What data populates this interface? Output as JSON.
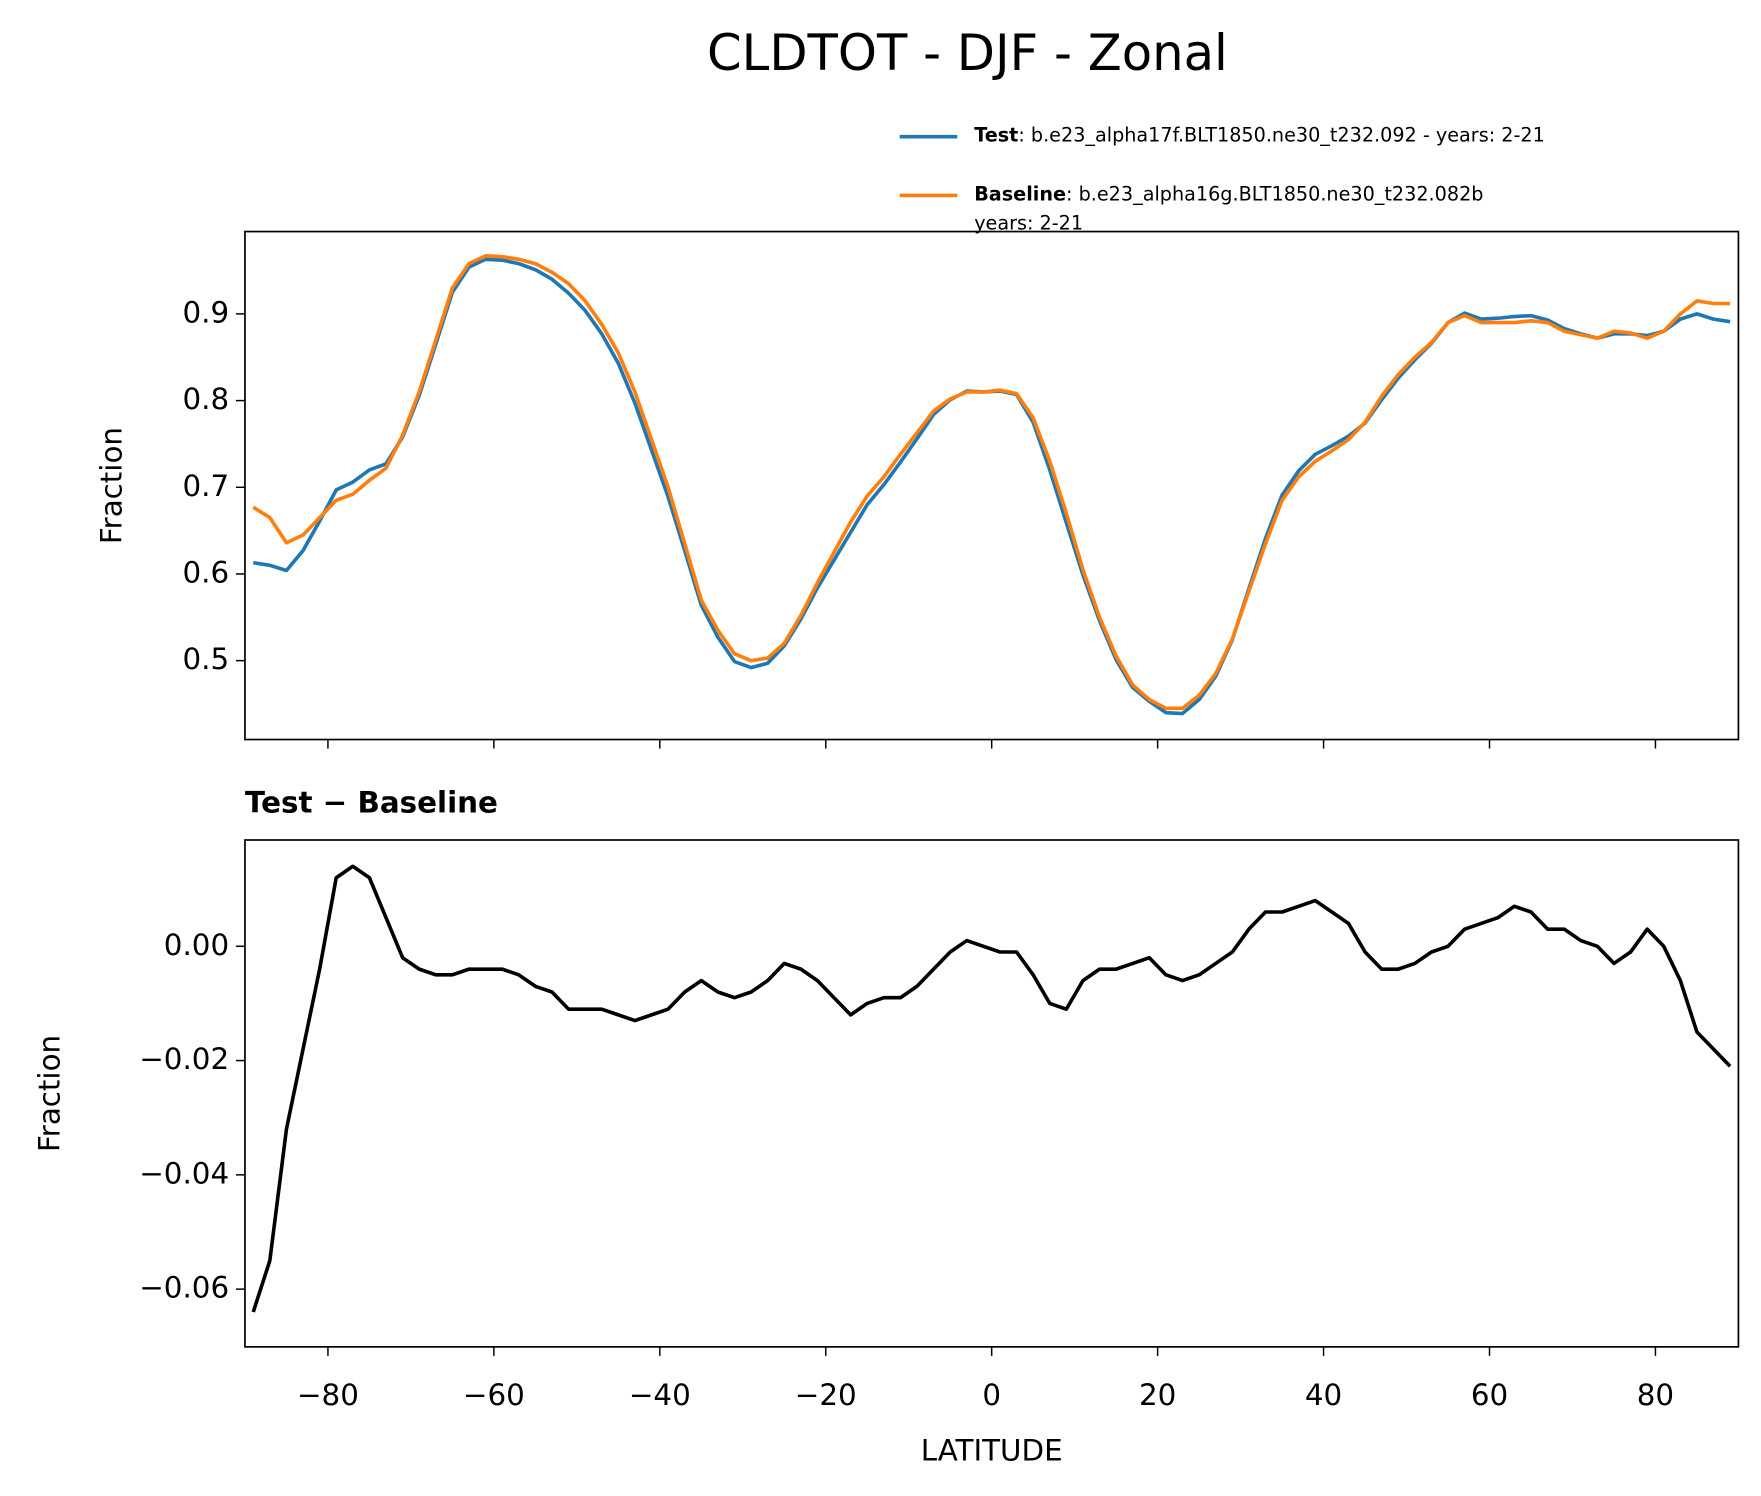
{
  "chart_data": [
    {
      "type": "line",
      "title": "CLDTOT - DJF - Zonal",
      "ylabel": "Fraction",
      "x": [
        -89,
        -87,
        -85,
        -83,
        -81,
        -79,
        -77,
        -75,
        -73,
        -71,
        -69,
        -67,
        -65,
        -63,
        -61,
        -59,
        -57,
        -55,
        -53,
        -51,
        -49,
        -47,
        -45,
        -43,
        -41,
        -39,
        -37,
        -35,
        -33,
        -31,
        -29,
        -27,
        -25,
        -23,
        -21,
        -19,
        -17,
        -15,
        -13,
        -11,
        -9,
        -7,
        -5,
        -3,
        -1,
        1,
        3,
        5,
        7,
        9,
        11,
        13,
        15,
        17,
        19,
        21,
        23,
        25,
        27,
        29,
        31,
        33,
        35,
        37,
        39,
        41,
        43,
        45,
        47,
        49,
        51,
        53,
        55,
        57,
        59,
        61,
        63,
        65,
        67,
        69,
        71,
        73,
        75,
        77,
        79,
        81,
        83,
        85,
        87,
        89
      ],
      "xlim": [
        -90,
        90
      ],
      "ylim": [
        0.409,
        0.995
      ],
      "yticks": [
        0.5,
        0.6,
        0.7,
        0.8,
        0.9
      ],
      "series": [
        {
          "name": "Test",
          "case": [
            ": b.e23_alpha17f.BLT1850.ne30_t232.092 - years: 2-21"
          ],
          "color": "#1f77b4",
          "values": [
            0.613,
            0.61,
            0.604,
            0.627,
            0.661,
            0.697,
            0.706,
            0.72,
            0.727,
            0.758,
            0.806,
            0.865,
            0.925,
            0.954,
            0.963,
            0.962,
            0.958,
            0.951,
            0.94,
            0.924,
            0.904,
            0.877,
            0.843,
            0.797,
            0.743,
            0.689,
            0.627,
            0.564,
            0.527,
            0.499,
            0.492,
            0.497,
            0.517,
            0.548,
            0.584,
            0.616,
            0.648,
            0.68,
            0.703,
            0.729,
            0.756,
            0.784,
            0.801,
            0.811,
            0.81,
            0.811,
            0.807,
            0.775,
            0.72,
            0.659,
            0.599,
            0.546,
            0.501,
            0.469,
            0.453,
            0.44,
            0.439,
            0.455,
            0.482,
            0.524,
            0.583,
            0.641,
            0.691,
            0.719,
            0.738,
            0.748,
            0.759,
            0.774,
            0.801,
            0.826,
            0.847,
            0.866,
            0.89,
            0.901,
            0.894,
            0.895,
            0.897,
            0.898,
            0.893,
            0.883,
            0.877,
            0.872,
            0.877,
            0.877,
            0.875,
            0.88,
            0.894,
            0.9,
            0.894,
            0.891
          ]
        },
        {
          "name": "Baseline",
          "case": [
            ": b.e23_alpha16g.BLT1850.ne30_t232.082b",
            "years: 2-21"
          ],
          "color": "#ff7f0e",
          "values": [
            0.677,
            0.665,
            0.636,
            0.645,
            0.665,
            0.685,
            0.692,
            0.708,
            0.722,
            0.76,
            0.81,
            0.87,
            0.93,
            0.958,
            0.967,
            0.966,
            0.963,
            0.958,
            0.948,
            0.935,
            0.915,
            0.888,
            0.855,
            0.81,
            0.755,
            0.7,
            0.635,
            0.57,
            0.535,
            0.508,
            0.5,
            0.503,
            0.52,
            0.552,
            0.59,
            0.625,
            0.66,
            0.69,
            0.712,
            0.738,
            0.763,
            0.788,
            0.802,
            0.81,
            0.81,
            0.812,
            0.808,
            0.78,
            0.73,
            0.67,
            0.605,
            0.55,
            0.505,
            0.472,
            0.455,
            0.445,
            0.445,
            0.46,
            0.485,
            0.525,
            0.58,
            0.635,
            0.685,
            0.712,
            0.73,
            0.742,
            0.755,
            0.775,
            0.805,
            0.83,
            0.85,
            0.867,
            0.89,
            0.898,
            0.89,
            0.89,
            0.89,
            0.892,
            0.89,
            0.88,
            0.876,
            0.872,
            0.88,
            0.878,
            0.872,
            0.88,
            0.9,
            0.915,
            0.912,
            0.912
          ]
        }
      ]
    },
    {
      "type": "line",
      "title": "Test − Baseline",
      "ylabel": "Fraction",
      "xlabel": "LATITUDE",
      "x": [
        -89,
        -87,
        -85,
        -83,
        -81,
        -79,
        -77,
        -75,
        -73,
        -71,
        -69,
        -67,
        -65,
        -63,
        -61,
        -59,
        -57,
        -55,
        -53,
        -51,
        -49,
        -47,
        -45,
        -43,
        -41,
        -39,
        -37,
        -35,
        -33,
        -31,
        -29,
        -27,
        -25,
        -23,
        -21,
        -19,
        -17,
        -15,
        -13,
        -11,
        -9,
        -7,
        -5,
        -3,
        -1,
        1,
        3,
        5,
        7,
        9,
        11,
        13,
        15,
        17,
        19,
        21,
        23,
        25,
        27,
        29,
        31,
        33,
        35,
        37,
        39,
        41,
        43,
        45,
        47,
        49,
        51,
        53,
        55,
        57,
        59,
        61,
        63,
        65,
        67,
        69,
        71,
        73,
        75,
        77,
        79,
        81,
        83,
        85,
        87,
        89
      ],
      "xlim": [
        -90,
        90
      ],
      "ylim": [
        -0.0701,
        0.0186
      ],
      "xticks": [
        {
          "value": -80,
          "label": "−80"
        },
        {
          "value": -60,
          "label": "−60"
        },
        {
          "value": -40,
          "label": "−40"
        },
        {
          "value": -20,
          "label": "−20"
        },
        0,
        20,
        40,
        60,
        80
      ],
      "yticks": [
        {
          "value": -0.06,
          "label": "−0.06"
        },
        {
          "value": -0.04,
          "label": "−0.04"
        },
        {
          "value": -0.02,
          "label": "−0.02"
        },
        {
          "value": 0,
          "label": "0.00"
        }
      ],
      "series": [
        {
          "color": "#000000",
          "values": [
            -0.064,
            -0.055,
            -0.032,
            -0.018,
            -0.004,
            0.012,
            0.014,
            0.012,
            0.005,
            -0.002,
            -0.004,
            -0.005,
            -0.005,
            -0.004,
            -0.004,
            -0.004,
            -0.005,
            -0.007,
            -0.008,
            -0.011,
            -0.011,
            -0.011,
            -0.012,
            -0.013,
            -0.012,
            -0.011,
            -0.008,
            -0.006,
            -0.008,
            -0.009,
            -0.008,
            -0.006,
            -0.003,
            -0.004,
            -0.006,
            -0.009,
            -0.012,
            -0.01,
            -0.009,
            -0.009,
            -0.007,
            -0.004,
            -0.001,
            0.001,
            0.0,
            -0.001,
            -0.001,
            -0.005,
            -0.01,
            -0.011,
            -0.006,
            -0.004,
            -0.004,
            -0.003,
            -0.002,
            -0.005,
            -0.006,
            -0.005,
            -0.003,
            -0.001,
            0.003,
            0.006,
            0.006,
            0.007,
            0.008,
            0.006,
            0.004,
            -0.001,
            -0.004,
            -0.004,
            -0.003,
            -0.001,
            0.0,
            0.003,
            0.004,
            0.005,
            0.007,
            0.006,
            0.003,
            0.003,
            0.001,
            0.0,
            -0.003,
            -0.001,
            0.003,
            0.0,
            -0.006,
            -0.015,
            -0.018,
            -0.021
          ]
        }
      ]
    }
  ]
}
